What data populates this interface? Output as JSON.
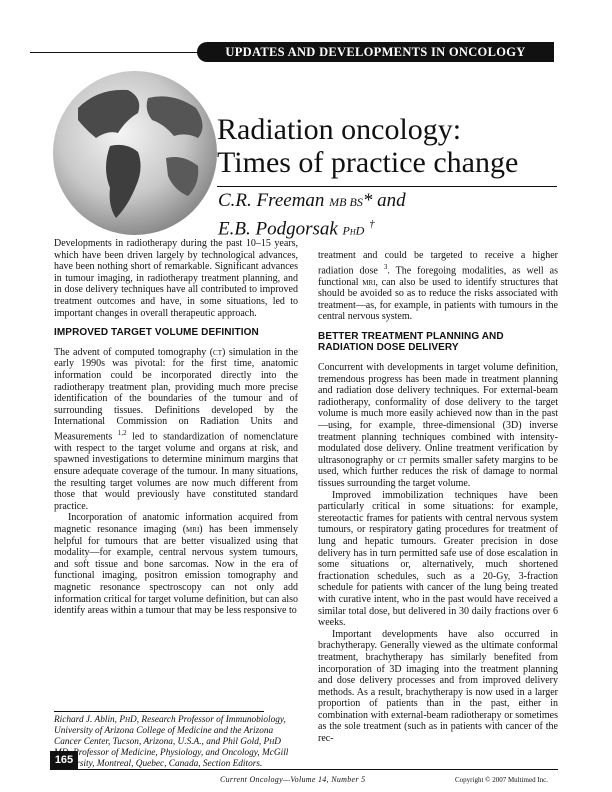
{
  "header": {
    "section": "UPDATES AND DEVELOPMENTS IN ONCOLOGY"
  },
  "article": {
    "title_line1": "Radiation oncology:",
    "title_line2": "Times of practice change",
    "author1_name": "C.R. Freeman",
    "author1_degree": "MB BS",
    "author1_mark": "* and",
    "author2_name": "E.B. Podgorsak",
    "author2_degree": "PhD",
    "author2_mark": "†"
  },
  "col1": {
    "p1": "Developments in radiotherapy during the past 10–15 years, which have been driven largely by technological advances, have been nothing short of remarkable. Significant advances in tumour imaging, in radiotherapy treatment planning, and in dose delivery techniques have all contributed to improved treatment outcomes and have, in some situations, led to important changes in overall therapeutic approach.",
    "h1": "IMPROVED TARGET VOLUME DEFINITION",
    "p2a": "The advent of computed tomography (",
    "p2_ct": "ct",
    "p2b": ") simulation in the early 1990s was pivotal: for the first time, anatomic information could be incorporated directly into the radiotherapy treatment plan, providing much more precise identification of the boundaries of the tumour and of surrounding tissues. Definitions developed by the International Commission on Radiation Units and Measurements ",
    "p2_ref": "1,2",
    "p2c": " led to standardization of nomenclature with respect to the target volume and organs at risk, and spawned investigations to determine minimum margins that ensure adequate coverage of the tumour. In many situations, the resulting target volumes are now much different from those that would previously have constituted standard practice.",
    "p3a": "Incorporation of anatomic information acquired from magnetic resonance imaging (",
    "p3_mri": "mri",
    "p3b": ") has been immensely helpful for tumours that are better visualized using that modality—for example, central nervous system tumours, and soft tissue and bone sarcomas. Now in the era of functional imaging, positron emission tomography and magnetic resonance spectroscopy can not only add information critical for target volume definition, but can also identify areas within a tumour that may be less responsive to"
  },
  "col2": {
    "p1a": "treatment and could be targeted to receive a higher radiation dose ",
    "p1_ref": "3",
    "p1b": ". The foregoing modalities, as well as functional ",
    "p1_mri": "mri",
    "p1c": ", can also be used to identify structures that should be avoided so as to reduce the risks associated with treatment—as, for example, in patients with tumours in the central nervous system.",
    "h2": "BETTER TREATMENT PLANNING AND RADIATION DOSE DELIVERY",
    "p2a": "Concurrent with developments in target volume definition, tremendous progress has been made in treatment planning and radiation dose delivery techniques. For external-beam radiotherapy, conformality of dose delivery to the target volume is much more easily achieved now than in the past—using, for example, three-dimensional (3D) inverse treatment planning techniques combined with intensity-modulated dose delivery. Online treatment verification by ultrasonography or ",
    "p2_ct": "ct",
    "p2b": " permits smaller safety margins to be used, which further reduces the risk of damage to normal tissues surrounding the target volume.",
    "p3": "Improved immobilization techniques have been particularly critical in some situations: for example, stereotactic frames for patients with central nervous system tumours, or respiratory gating procedures for treatment of lung and hepatic tumours. Greater precision in dose delivery has in turn permitted safe use of dose escalation in some situations or, alternatively, much shortened fractionation schedules, such as a 20-Gy, 3-fraction schedule for patients with cancer of the lung being treated with curative intent, who in the past would have received a similar total dose, but delivered in 30 daily fractions over 6 weeks.",
    "p4": "Important developments have also occurred in brachytherapy. Generally viewed as the ultimate conformal treatment, brachytherapy has similarly benefited from incorporation of 3D imaging into the treatment planning and dose delivery processes and from improved delivery methods. As a result, brachytherapy is now used in a larger proportion of patients than in the past, either in combination with external-beam radiotherapy or sometimes as the sole treatment (such as in patients with cancer of the rec-"
  },
  "footnote": {
    "name1": "Richard J. Ablin, ",
    "deg1": "PhD",
    "text1": ", Research Professor of Immunobiology, University of Arizona College of Medicine and the Arizona Cancer Center, Tucson, Arizona, U.S.A., and Phil Gold, ",
    "deg2": "PhD MD",
    "text2": ", Professor of Medicine, Physiology, and Oncology, McGill University, Montreal, Quebec, Canada, Section Editors."
  },
  "footer": {
    "page_number": "165",
    "journal": "Current Oncology—Volume 14, Number 5",
    "copyright": "Copyright © 2007 Multimed Inc."
  }
}
